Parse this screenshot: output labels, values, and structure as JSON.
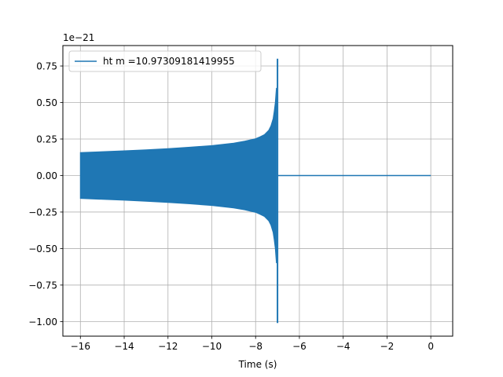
{
  "chart_data": {
    "type": "line",
    "title": "",
    "xlabel": "Time (s)",
    "ylabel": "",
    "y_offset_label": "1e−21",
    "xlim": [
      -16.8,
      1.0
    ],
    "ylim": [
      -1.1,
      0.89
    ],
    "x_ticks": [
      -16,
      -14,
      -12,
      -10,
      -8,
      -6,
      -4,
      -2,
      0
    ],
    "x_tick_labels": [
      "−16",
      "−14",
      "−12",
      "−10",
      "−8",
      "−6",
      "−4",
      "−2",
      "0"
    ],
    "y_ticks": [
      -1.0,
      -0.75,
      -0.5,
      -0.25,
      0.0,
      0.25,
      0.5,
      0.75
    ],
    "y_tick_labels": [
      "−1.00",
      "−0.75",
      "−0.50",
      "−0.25",
      "0.00",
      "0.25",
      "0.50",
      "0.75"
    ],
    "grid": true,
    "legend": {
      "position": "upper-left"
    },
    "series": [
      {
        "name": "ht m =10.97309181419955",
        "color": "#1f77b4",
        "x_start": -16.0,
        "x_merger": -7.0,
        "x_end": 0.0,
        "envelope_x": [
          -16.0,
          -15.0,
          -14.0,
          -13.0,
          -12.0,
          -11.0,
          -10.0,
          -9.0,
          -8.5,
          -8.0,
          -7.8,
          -7.6,
          -7.4,
          -7.3,
          -7.2,
          -7.15,
          -7.1,
          -7.05
        ],
        "envelope_upper": [
          0.157,
          0.163,
          0.169,
          0.176,
          0.184,
          0.194,
          0.205,
          0.222,
          0.235,
          0.252,
          0.265,
          0.28,
          0.31,
          0.34,
          0.39,
          0.44,
          0.5,
          0.6
        ],
        "envelope_lower": [
          -0.157,
          -0.163,
          -0.169,
          -0.176,
          -0.184,
          -0.194,
          -0.205,
          -0.222,
          -0.235,
          -0.252,
          -0.265,
          -0.28,
          -0.31,
          -0.34,
          -0.39,
          -0.44,
          -0.5,
          -0.6
        ],
        "peak_max": 0.8,
        "peak_min": -1.01
      }
    ]
  }
}
